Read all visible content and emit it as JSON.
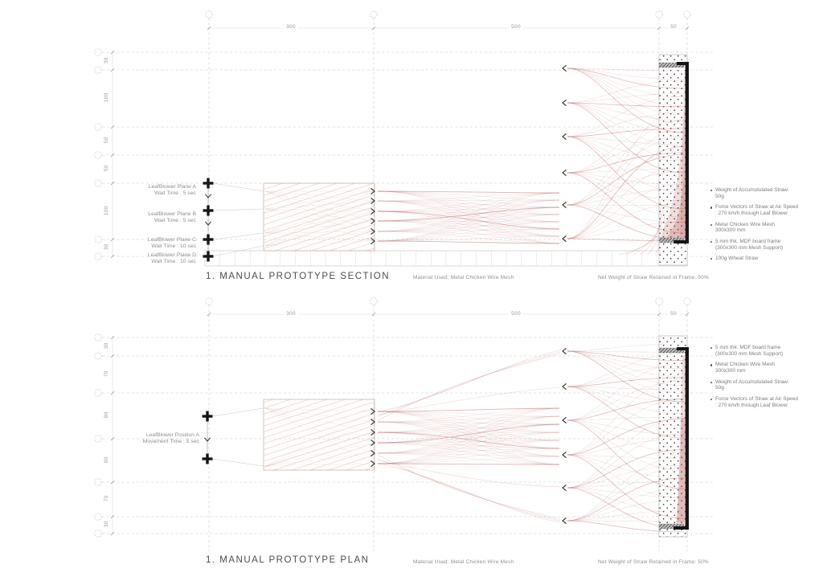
{
  "colors": {
    "accent_red": "#b85c58",
    "hatch_red": "#cf9488",
    "frame_black": "#161616",
    "grid_gray": "#cdcdcd",
    "label_gray": "#8f8f8f",
    "title_gray": "#4c4c4c"
  },
  "section": {
    "title": "1. MANUAL PROTOTYPE SECTION",
    "material_note": "Material Used: Metal Chicken Wire Mesh",
    "result_note": "Net Weight of Straw Retained in Frame: 50%",
    "top_dims": [
      "300",
      "500",
      "50"
    ],
    "left_dims": [
      "30",
      "100",
      "50",
      "50",
      "100",
      "30"
    ],
    "blowers": [
      {
        "name": "LeafBlower Plane A",
        "time": "Wait Time : 5 sec"
      },
      {
        "name": "LeafBlower Plane B",
        "time": "Wait Time : 5 sec"
      },
      {
        "name": "LeafBlower Plane C",
        "time": "Wait Time : 10 sec"
      },
      {
        "name": "LeafBlower Plane D",
        "time": "Wait Time : 10 sec"
      }
    ],
    "annotations": [
      [
        "Weight of Accumululated Straw:",
        "50g"
      ],
      [
        "Force Vectors of Straw at Air Speed",
        ": 270 km/h through Leaf Blower"
      ],
      [
        "Metal Chicken Wire Mesh",
        "300x300 mm"
      ],
      [
        "5 mm thk. MDF board frame",
        "(300x300 mm Mesh Support)"
      ],
      [
        "100g Wheat Straw",
        ""
      ]
    ]
  },
  "plan": {
    "title": "1. MANUAL PROTOTYPE PLAN",
    "material_note": "Material Used: Metal Chicken Wire Mesh",
    "result_note": "Net Weight of Straw Retained in Frame: 50%",
    "top_dims": [
      "300",
      "500",
      "50"
    ],
    "left_dims": [
      "30",
      "70",
      "80",
      "80",
      "70",
      "30"
    ],
    "blowers": [
      {
        "name": "LeafBlower Position A",
        "time": "Movement Time : 5 sec"
      }
    ],
    "annotations": [
      [
        "5 mm thk. MDF board frame",
        "(300x300 mm Mesh Support)"
      ],
      [
        "Metal Chicken Wire Mesh",
        "300x300 mm"
      ],
      [
        "Weight of Accumululated Straw:",
        "50g"
      ],
      [
        "Force Vectors of Straw at Air Speed",
        ": 270 km/h through Leaf Blower"
      ]
    ]
  }
}
